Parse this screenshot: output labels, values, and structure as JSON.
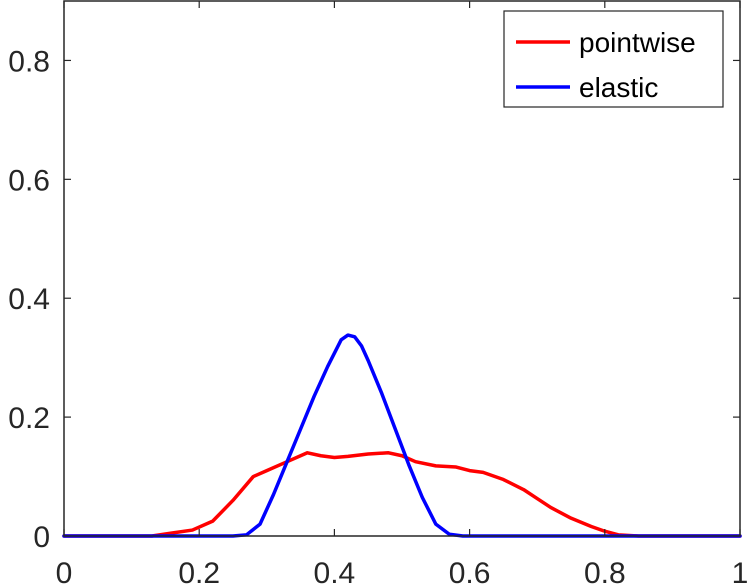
{
  "chart_data": {
    "type": "line",
    "title": "",
    "xlabel": "",
    "ylabel": "",
    "xlim": [
      0,
      1
    ],
    "ylim": [
      0,
      0.9
    ],
    "xticks": [
      0,
      0.2,
      0.4,
      0.6,
      0.8,
      1
    ],
    "yticks": [
      0,
      0.2,
      0.4,
      0.6,
      0.8
    ],
    "xtick_labels": [
      "0",
      "0.2",
      "0.4",
      "0.6",
      "0.8",
      "1"
    ],
    "ytick_labels": [
      "0",
      "0.2",
      "0.4",
      "0.6",
      "0.8"
    ],
    "grid": false,
    "legend_position": "top-right",
    "series": [
      {
        "name": "pointwise",
        "color": "#ff0000",
        "x": [
          0,
          0.05,
          0.1,
          0.13,
          0.16,
          0.19,
          0.22,
          0.25,
          0.28,
          0.3,
          0.33,
          0.36,
          0.38,
          0.4,
          0.42,
          0.45,
          0.48,
          0.5,
          0.52,
          0.55,
          0.58,
          0.6,
          0.62,
          0.65,
          0.68,
          0.7,
          0.72,
          0.75,
          0.78,
          0.8,
          0.82,
          0.85,
          0.9,
          1.0
        ],
        "y": [
          0,
          0,
          0,
          0,
          0.005,
          0.01,
          0.025,
          0.06,
          0.1,
          0.11,
          0.125,
          0.14,
          0.135,
          0.132,
          0.134,
          0.138,
          0.14,
          0.135,
          0.125,
          0.118,
          0.116,
          0.11,
          0.107,
          0.095,
          0.078,
          0.063,
          0.048,
          0.03,
          0.016,
          0.008,
          0.002,
          0,
          0,
          0
        ]
      },
      {
        "name": "elastic",
        "color": "#0000ff",
        "x": [
          0,
          0.05,
          0.1,
          0.15,
          0.2,
          0.25,
          0.27,
          0.29,
          0.31,
          0.33,
          0.35,
          0.37,
          0.39,
          0.41,
          0.42,
          0.43,
          0.44,
          0.45,
          0.47,
          0.49,
          0.51,
          0.53,
          0.55,
          0.57,
          0.59,
          0.61,
          0.65,
          0.7,
          0.8,
          0.9,
          1.0
        ],
        "y": [
          0,
          0,
          0,
          0,
          0,
          0,
          0.002,
          0.02,
          0.07,
          0.125,
          0.18,
          0.235,
          0.285,
          0.33,
          0.338,
          0.335,
          0.32,
          0.295,
          0.24,
          0.18,
          0.12,
          0.065,
          0.02,
          0.003,
          0,
          0,
          0,
          0,
          0,
          0,
          0
        ]
      }
    ]
  }
}
